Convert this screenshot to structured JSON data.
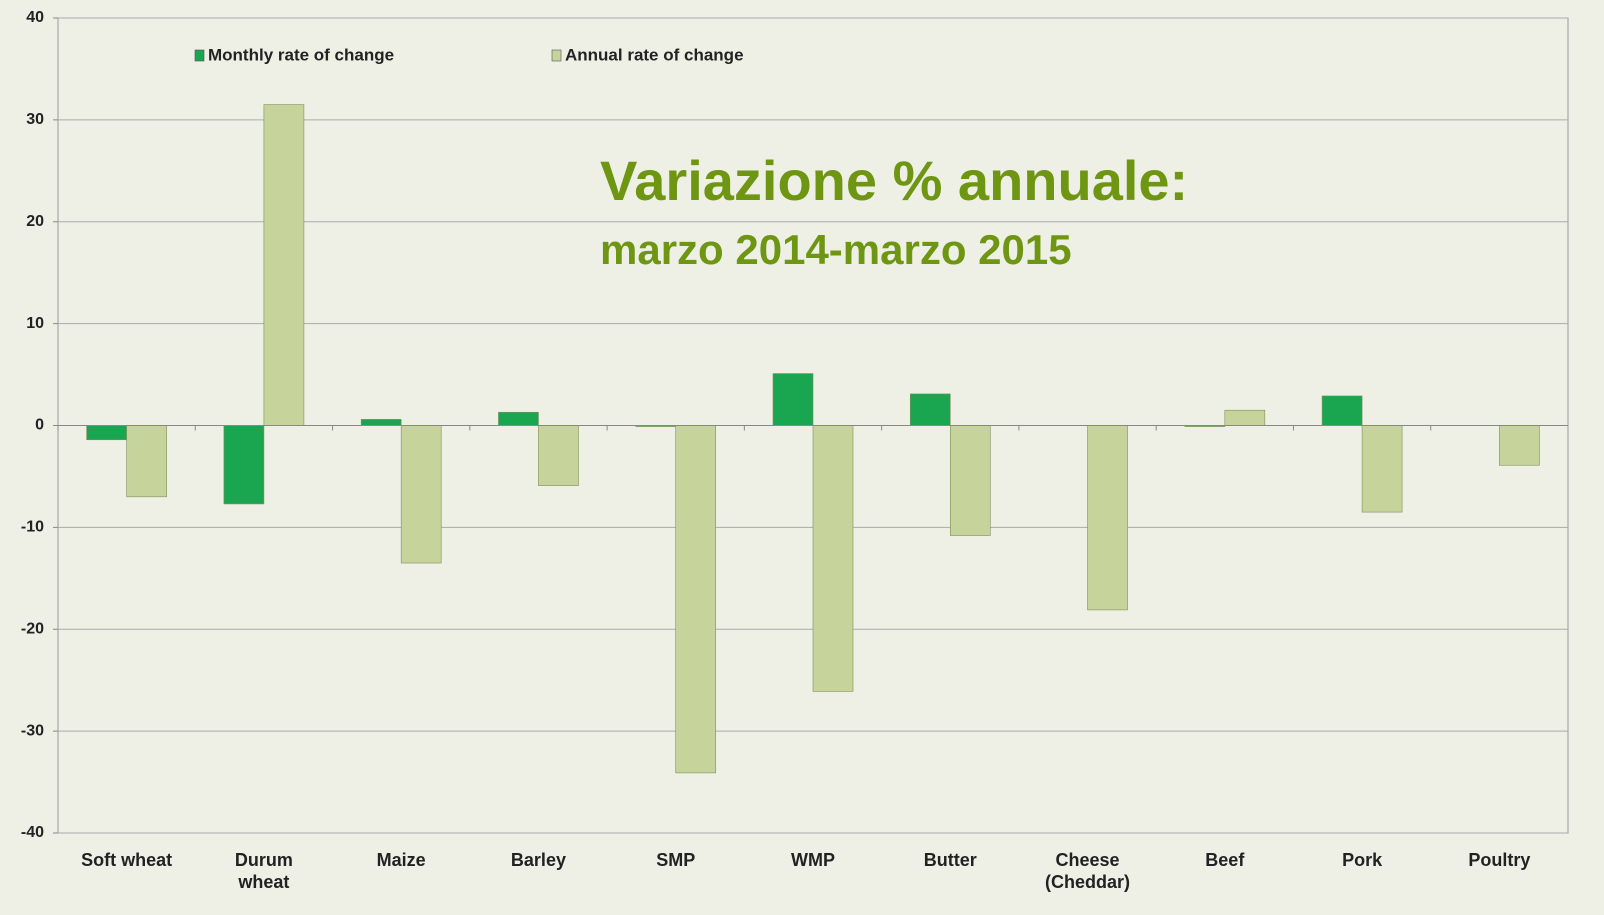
{
  "chart_data": {
    "type": "bar",
    "title": "Variazione % annuale:",
    "subtitle": "marzo 2014-marzo 2015",
    "categories": [
      "Soft wheat",
      "Durum wheat",
      "Maize",
      "Barley",
      "SMP",
      "WMP",
      "Butter",
      "Cheese (Cheddar)",
      "Beef",
      "Pork",
      "Poultry"
    ],
    "series": [
      {
        "name": "Monthly rate of change",
        "color": "#1aa551",
        "values": [
          -1.4,
          -7.7,
          0.6,
          1.3,
          -0.1,
          5.1,
          3.1,
          null,
          -0.1,
          2.9,
          null
        ]
      },
      {
        "name": "Annual rate of change",
        "color": "#c6d49c",
        "values": [
          -7.0,
          31.5,
          -13.5,
          -5.9,
          -34.1,
          -26.1,
          -10.8,
          -18.1,
          1.5,
          -8.5,
          -3.9
        ]
      }
    ],
    "ylim": [
      -40,
      40
    ],
    "yticks": [
      -40,
      -30,
      -20,
      -10,
      0,
      10,
      20,
      30,
      40
    ],
    "grid": true,
    "legend": "top-left"
  }
}
